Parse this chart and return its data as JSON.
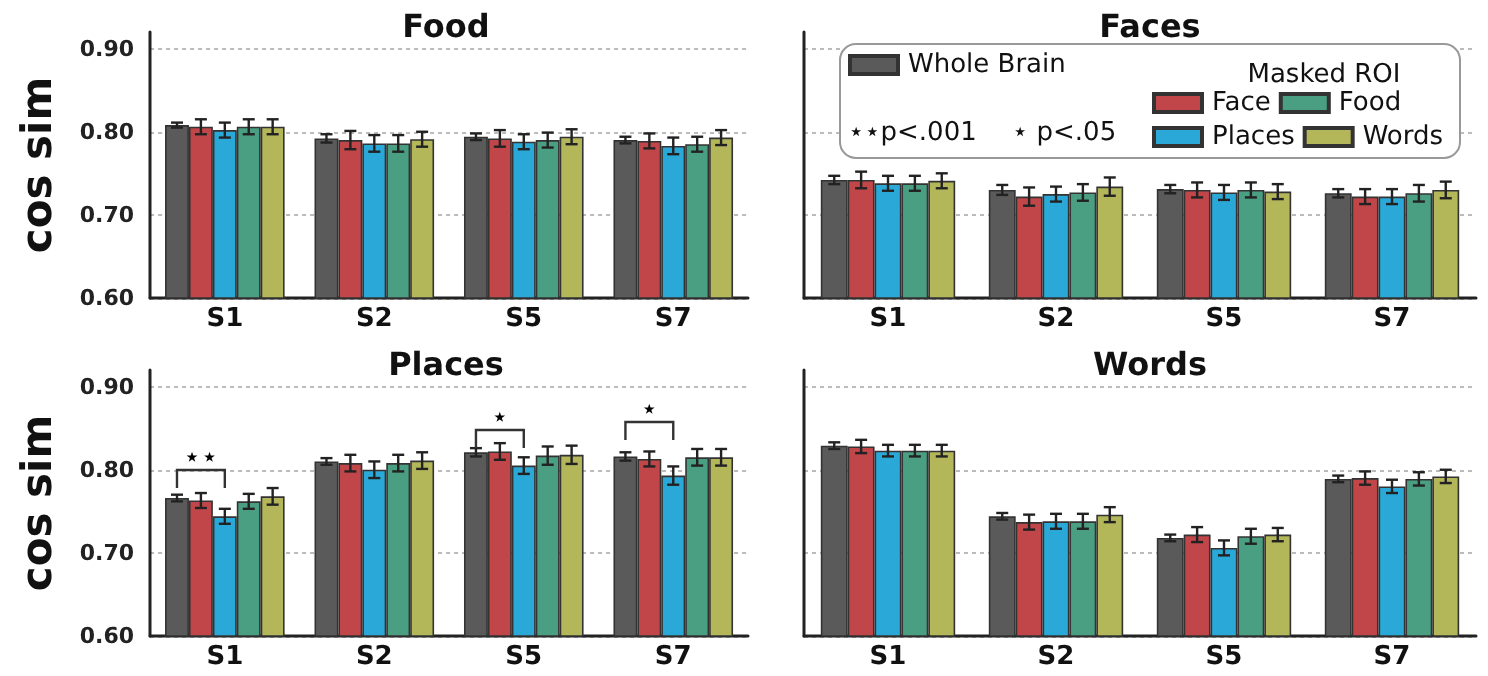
{
  "chart_data": [
    {
      "type": "bar",
      "title": "Food",
      "ylabel": "cos sim",
      "categories": [
        "S1",
        "S2",
        "S5",
        "S7"
      ],
      "ylim": [
        0.6,
        0.92
      ],
      "yticks": [
        {
          "value": 0.6,
          "label": "0.60"
        },
        {
          "value": 0.7,
          "label": "0.70"
        },
        {
          "value": 0.8,
          "label": "0.80"
        },
        {
          "value": 0.9,
          "label": "0.90"
        }
      ],
      "grid": "y",
      "series": [
        {
          "color": "#5a5a5a",
          "values": [
            0.808,
            0.792,
            0.794,
            0.79
          ],
          "errors": [
            0.003,
            0.005,
            0.004,
            0.004
          ]
        },
        {
          "color": "#c0464a",
          "values": [
            0.806,
            0.79,
            0.792,
            0.789
          ],
          "errors": [
            0.009,
            0.011,
            0.01,
            0.009
          ]
        },
        {
          "color": "#2aa9d8",
          "values": [
            0.802,
            0.786,
            0.788,
            0.783
          ],
          "errors": [
            0.009,
            0.01,
            0.009,
            0.01
          ]
        },
        {
          "color": "#4a9f83",
          "values": [
            0.806,
            0.786,
            0.79,
            0.785
          ],
          "errors": [
            0.009,
            0.01,
            0.009,
            0.009
          ]
        },
        {
          "color": "#b3b75a",
          "values": [
            0.806,
            0.791,
            0.794,
            0.793
          ],
          "errors": [
            0.009,
            0.009,
            0.009,
            0.009
          ]
        }
      ]
    },
    {
      "type": "bar",
      "title": "Faces",
      "categories": [
        "S1",
        "S2",
        "S5",
        "S7"
      ],
      "ylim": [
        0.6,
        0.92
      ],
      "yticks": [
        0.6,
        0.7,
        0.8,
        0.9
      ],
      "grid": "y",
      "tick_labels": "x",
      "legend": "top",
      "legend_title": "Masked ROI",
      "annotations": [
        "⋆⋆p<.001",
        "⋆ p<.05"
      ],
      "series": [
        {
          "name": "Whole Brain",
          "color": "#5a5a5a",
          "values": [
            0.742,
            0.73,
            0.731,
            0.726
          ],
          "errors": [
            0.005,
            0.006,
            0.005,
            0.005
          ]
        },
        {
          "name": "Face",
          "color": "#c0464a",
          "values": [
            0.742,
            0.722,
            0.73,
            0.722
          ],
          "errors": [
            0.01,
            0.011,
            0.009,
            0.009
          ]
        },
        {
          "name": "Places",
          "color": "#2aa9d8",
          "values": [
            0.738,
            0.725,
            0.727,
            0.722
          ],
          "errors": [
            0.009,
            0.009,
            0.009,
            0.009
          ]
        },
        {
          "name": "Food",
          "color": "#4a9f83",
          "values": [
            0.738,
            0.727,
            0.73,
            0.726
          ],
          "errors": [
            0.009,
            0.01,
            0.009,
            0.01
          ]
        },
        {
          "name": "Words",
          "color": "#b3b75a",
          "values": [
            0.741,
            0.734,
            0.728,
            0.73
          ],
          "errors": [
            0.009,
            0.011,
            0.009,
            0.01
          ]
        }
      ]
    },
    {
      "type": "bar",
      "title": "Places",
      "ylabel": "cos sim",
      "categories": [
        "S1",
        "S2",
        "S5",
        "S7"
      ],
      "ylim": [
        0.6,
        0.92
      ],
      "yticks": [
        {
          "value": 0.6,
          "label": "0.60"
        },
        {
          "value": 0.7,
          "label": "0.70"
        },
        {
          "value": 0.8,
          "label": "0.80"
        },
        {
          "value": 0.9,
          "label": "0.90"
        }
      ],
      "grid": "y",
      "annotations": [
        "⋆⋆",
        "⋆",
        "⋆"
      ],
      "series": [
        {
          "color": "#5a5a5a",
          "values": [
            0.766,
            0.81,
            0.821,
            0.816
          ],
          "errors": [
            0.004,
            0.004,
            0.005,
            0.005
          ]
        },
        {
          "color": "#c0464a",
          "values": [
            0.763,
            0.808,
            0.822,
            0.813
          ],
          "errors": [
            0.009,
            0.01,
            0.01,
            0.009
          ]
        },
        {
          "color": "#2aa9d8",
          "values": [
            0.744,
            0.8,
            0.805,
            0.793
          ],
          "errors": [
            0.009,
            0.01,
            0.01,
            0.011
          ]
        },
        {
          "color": "#4a9f83",
          "values": [
            0.762,
            0.808,
            0.817,
            0.815
          ],
          "errors": [
            0.009,
            0.01,
            0.011,
            0.01
          ]
        },
        {
          "color": "#b3b75a",
          "values": [
            0.768,
            0.811,
            0.818,
            0.815
          ],
          "errors": [
            0.01,
            0.01,
            0.011,
            0.01
          ]
        }
      ]
    },
    {
      "type": "bar",
      "title": "Words",
      "categories": [
        "S1",
        "S2",
        "S5",
        "S7"
      ],
      "ylim": [
        0.6,
        0.92
      ],
      "yticks": [
        0.6,
        0.7,
        0.8,
        0.9
      ],
      "grid": "y",
      "tick_labels": "x",
      "series": [
        {
          "color": "#5a5a5a",
          "values": [
            0.829,
            0.744,
            0.718,
            0.789
          ],
          "errors": [
            0.004,
            0.004,
            0.004,
            0.004
          ]
        },
        {
          "color": "#c0464a",
          "values": [
            0.828,
            0.737,
            0.722,
            0.79
          ],
          "errors": [
            0.008,
            0.009,
            0.009,
            0.008
          ]
        },
        {
          "color": "#2aa9d8",
          "values": [
            0.823,
            0.738,
            0.706,
            0.78
          ],
          "errors": [
            0.007,
            0.009,
            0.009,
            0.008
          ]
        },
        {
          "color": "#4a9f83",
          "values": [
            0.823,
            0.738,
            0.72,
            0.789
          ],
          "errors": [
            0.007,
            0.009,
            0.009,
            0.008
          ]
        },
        {
          "color": "#b3b75a",
          "values": [
            0.823,
            0.746,
            0.722,
            0.792
          ],
          "errors": [
            0.007,
            0.009,
            0.008,
            0.008
          ]
        }
      ]
    }
  ]
}
